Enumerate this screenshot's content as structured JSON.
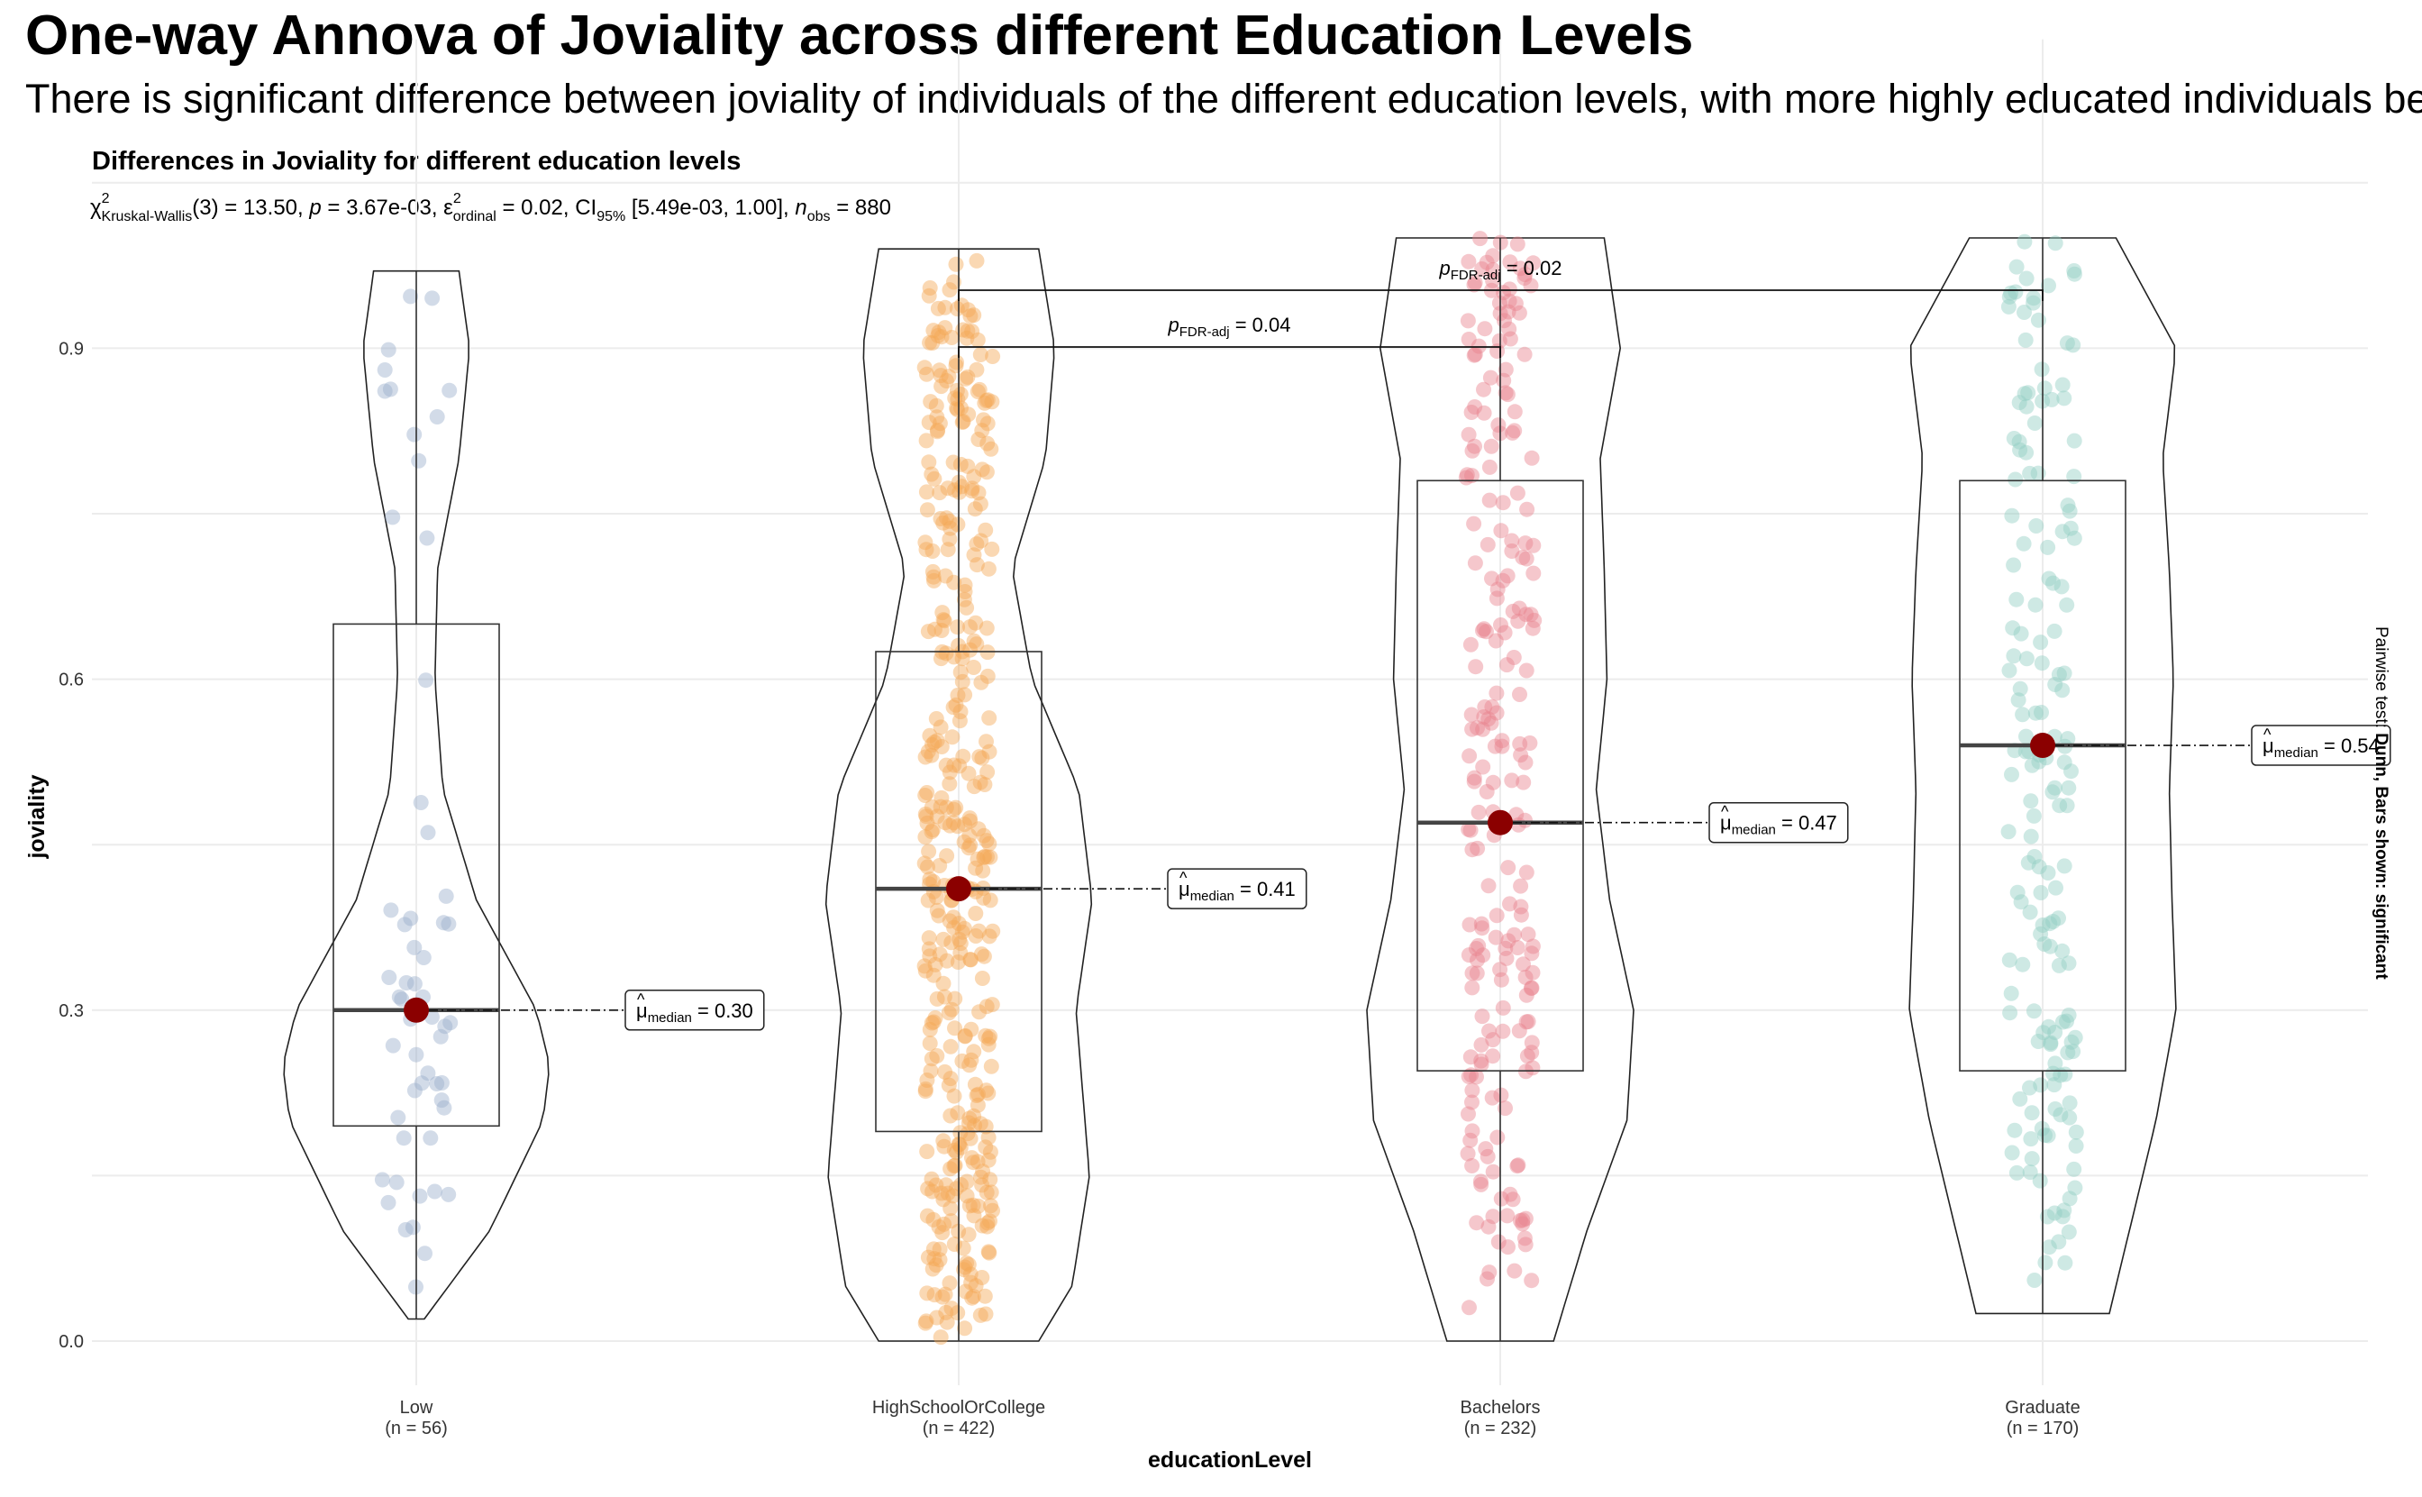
{
  "page": {
    "title": "One-way Annova of Joviality across different Education Levels",
    "subtitle": "There is significant difference between joviality of individuals of the different education levels, with more highly educated individuals being happier"
  },
  "chart_data": {
    "type": "violin-box-scatter",
    "title": "Differences in Joviality for different education levels",
    "stats": {
      "chi": "χ",
      "chi_sup": "2",
      "chi_sub": "Kruskal-Wallis",
      "df": "(3)",
      "statistic": " = 13.50, ",
      "p_label": "p",
      "p_value": " = 3.67e-03, ",
      "eps": "ε",
      "eps_sup": "2",
      "eps_sub": "ordinal",
      "eps_value": " = 0.02, CI",
      "ci_sub": "95%",
      "ci_value": " [5.49e-03, 1.00], ",
      "n_label": "n",
      "n_sub": "obs",
      "n_value": " = 880"
    },
    "xlabel": "educationLevel",
    "ylabel": "joviality",
    "ylim": [
      -0.04,
      1.18
    ],
    "yticks": [
      0.0,
      0.3,
      0.6,
      0.9
    ],
    "ytick_labels": [
      "0.0",
      "0.3",
      "0.6",
      "0.9"
    ],
    "side_caption": {
      "prefix": "Pairwise test: ",
      "bold": "Dunn, Bars shown: significant"
    },
    "median_label_prefix": "μ",
    "median_label_sub": "median",
    "groups": [
      {
        "name": "Low",
        "n_label": "(n = 56)",
        "n": 56,
        "color": "#9BB0CC",
        "median": 0.3,
        "median_label": " = 0.30",
        "q1": 0.195,
        "q3": 0.65,
        "min": 0.02,
        "max": 0.97,
        "density": [
          [
            0.02,
            0.06
          ],
          [
            0.1,
            0.55
          ],
          [
            0.2,
            0.95
          ],
          [
            0.25,
            1.0
          ],
          [
            0.3,
            0.9
          ],
          [
            0.4,
            0.45
          ],
          [
            0.5,
            0.2
          ],
          [
            0.6,
            0.14
          ],
          [
            0.7,
            0.16
          ],
          [
            0.8,
            0.32
          ],
          [
            0.9,
            0.4
          ],
          [
            0.97,
            0.32
          ]
        ]
      },
      {
        "name": "HighSchoolOrCollege",
        "n_label": "(n = 422)",
        "n": 422,
        "color": "#F4A957",
        "median": 0.41,
        "median_label": " = 0.41",
        "q1": 0.19,
        "q3": 0.625,
        "min": 0.0,
        "max": 0.99,
        "density": [
          [
            0.0,
            0.6
          ],
          [
            0.05,
            0.85
          ],
          [
            0.15,
            0.98
          ],
          [
            0.3,
            0.88
          ],
          [
            0.4,
            1.0
          ],
          [
            0.5,
            0.9
          ],
          [
            0.6,
            0.55
          ],
          [
            0.7,
            0.4
          ],
          [
            0.8,
            0.65
          ],
          [
            0.9,
            0.72
          ],
          [
            0.99,
            0.6
          ]
        ]
      },
      {
        "name": "Bachelors",
        "n_label": "(n = 232)",
        "n": 232,
        "color": "#E8828E",
        "median": 0.47,
        "median_label": " = 0.47",
        "q1": 0.245,
        "q3": 0.78,
        "min": 0.0,
        "max": 1.0,
        "density": [
          [
            0.0,
            0.4
          ],
          [
            0.1,
            0.65
          ],
          [
            0.2,
            0.95
          ],
          [
            0.3,
            1.0
          ],
          [
            0.4,
            0.82
          ],
          [
            0.5,
            0.72
          ],
          [
            0.6,
            0.8
          ],
          [
            0.7,
            0.78
          ],
          [
            0.8,
            0.75
          ],
          [
            0.9,
            0.9
          ],
          [
            1.0,
            0.78
          ]
        ]
      },
      {
        "name": "Graduate",
        "n_label": "(n = 170)",
        "n": 170,
        "color": "#92CEC4",
        "median": 0.54,
        "median_label": " = 0.54",
        "q1": 0.245,
        "q3": 0.78,
        "min": 0.025,
        "max": 1.0,
        "density": [
          [
            0.025,
            0.5
          ],
          [
            0.1,
            0.65
          ],
          [
            0.2,
            0.85
          ],
          [
            0.3,
            1.0
          ],
          [
            0.4,
            0.97
          ],
          [
            0.5,
            0.95
          ],
          [
            0.6,
            0.98
          ],
          [
            0.7,
            0.95
          ],
          [
            0.8,
            0.9
          ],
          [
            0.9,
            1.0
          ],
          [
            1.0,
            0.55
          ]
        ]
      }
    ],
    "pairwise": [
      {
        "from": 1,
        "to": 2,
        "label_p": "p",
        "label_sub": "FDR-adj",
        "label_value": " = 0.04",
        "level": 0
      },
      {
        "from": 1,
        "to": 3,
        "label_p": "p",
        "label_sub": "FDR-adj",
        "label_value": " = 0.02",
        "level": 1
      }
    ],
    "grid": true,
    "median_point_color": "#8B0000"
  }
}
